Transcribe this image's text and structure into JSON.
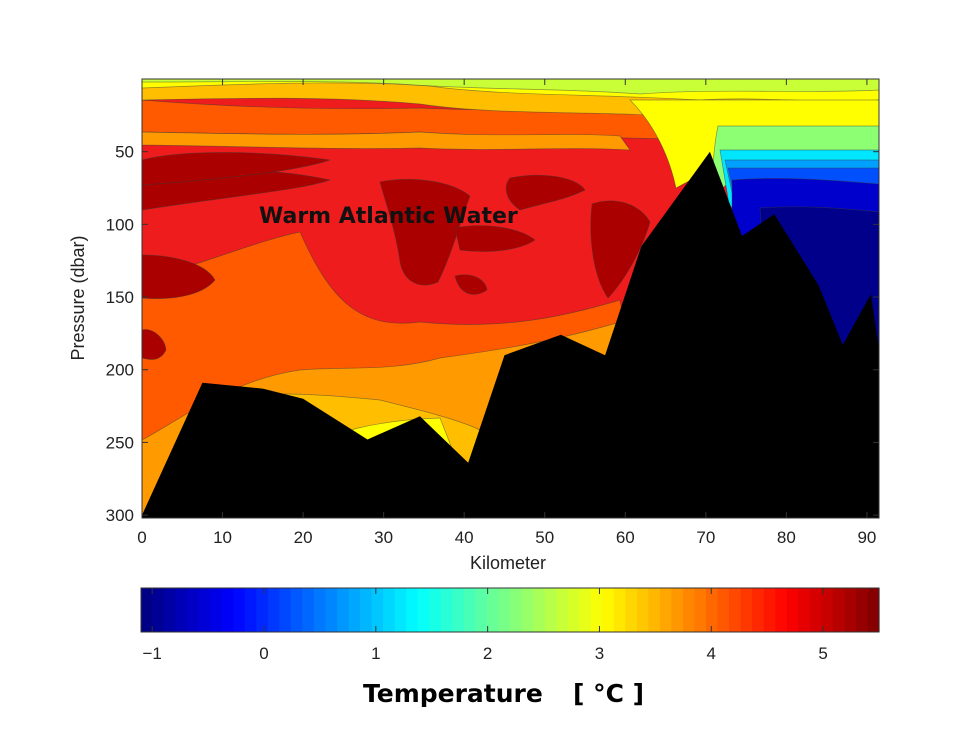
{
  "chart_data": {
    "type": "heatmap",
    "subtype": "filled-contour section",
    "xlabel": "Kilometer",
    "ylabel": "Pressure (dbar)",
    "xlim": [
      0,
      91.5
    ],
    "ylim": [
      0,
      302
    ],
    "y_inverted": true,
    "x_ticks": [
      0,
      10,
      20,
      30,
      40,
      50,
      60,
      70,
      80,
      90
    ],
    "y_ticks": [
      50,
      100,
      150,
      200,
      250,
      300
    ],
    "annotation": {
      "text": "Warm Atlantic Water",
      "x": 14.5,
      "y": 98
    },
    "colorbar": {
      "label": "Temperature",
      "unit": "[ °C ]",
      "range": [
        -1.1,
        5.5
      ],
      "ticks": [
        -1,
        0,
        1,
        2,
        3,
        4,
        5
      ],
      "tick_labels": [
        "−1",
        "0",
        "1",
        "2",
        "3",
        "4",
        "5"
      ],
      "colormap": "jet"
    },
    "temperature_bands": [
      {
        "name": "dark-red",
        "value": 5.2,
        "color": "#aa0000"
      },
      {
        "name": "red",
        "value": 4.8,
        "color": "#ee1c1c"
      },
      {
        "name": "orange-red",
        "value": 4.3,
        "color": "#ff5a00"
      },
      {
        "name": "orange",
        "value": 3.8,
        "color": "#ff9b00"
      },
      {
        "name": "light-orange",
        "value": 3.5,
        "color": "#ffbe00"
      },
      {
        "name": "yellow",
        "value": 3.0,
        "color": "#ffff00"
      },
      {
        "name": "yellow-green",
        "value": 2.3,
        "color": "#c8ff37"
      },
      {
        "name": "green",
        "value": 1.9,
        "color": "#8cff73"
      },
      {
        "name": "cyan",
        "value": 1.1,
        "color": "#00e6ff"
      },
      {
        "name": "light-blue",
        "value": 0.6,
        "color": "#00a0ff"
      },
      {
        "name": "blue",
        "value": 0.0,
        "color": "#0050ff"
      },
      {
        "name": "dark-blue",
        "value": -0.5,
        "color": "#0000cd"
      },
      {
        "name": "navy",
        "value": -0.9,
        "color": "#00008b"
      }
    ],
    "seafloor": {
      "color": "#000000",
      "points": [
        [
          0,
          300
        ],
        [
          7.5,
          209
        ],
        [
          15,
          213
        ],
        [
          20,
          220
        ],
        [
          28,
          248
        ],
        [
          34.5,
          232
        ],
        [
          40.5,
          264
        ],
        [
          45,
          190
        ],
        [
          52,
          176
        ],
        [
          57.5,
          190
        ],
        [
          62,
          115
        ],
        [
          70.5,
          50
        ],
        [
          74.5,
          108
        ],
        [
          78.5,
          93
        ],
        [
          84,
          142
        ],
        [
          87,
          183
        ],
        [
          90.5,
          148
        ],
        [
          91.5,
          186
        ]
      ]
    }
  }
}
